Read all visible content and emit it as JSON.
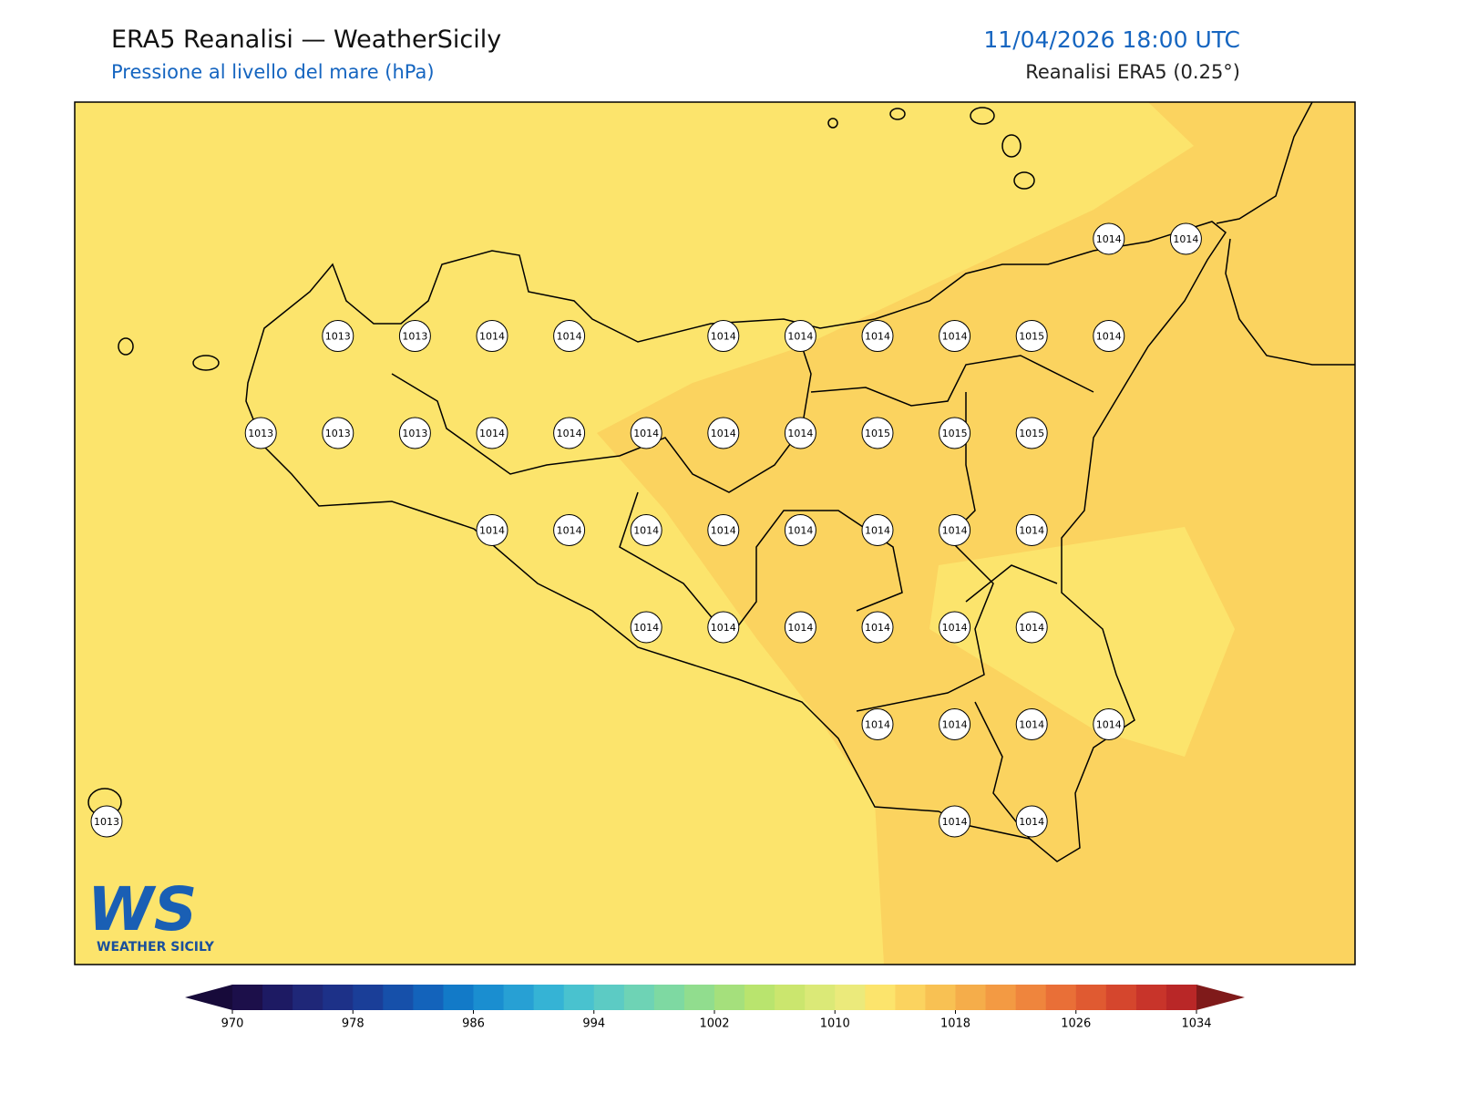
{
  "header": {
    "title": "ERA5 Reanalisi — WeatherSicily",
    "subtitle": "Pressione al livello del mare (hPa)",
    "datetime": "11/04/2026 18:00 UTC",
    "source": "Reanalisi ERA5 (0.25°)"
  },
  "logo": {
    "mark": "WS",
    "text": "WEATHER SICILY"
  },
  "station_grid": {
    "rows": [
      [
        null,
        null,
        null,
        null,
        null,
        null,
        null,
        null,
        null,
        null,
        null,
        null,
        null,
        1014,
        1014
      ],
      [
        null,
        null,
        null,
        1013,
        1013,
        1014,
        1014,
        null,
        1014,
        1014,
        1014,
        1014,
        1015,
        1014,
        null
      ],
      [
        null,
        null,
        1013,
        1013,
        1013,
        1014,
        1014,
        1014,
        1014,
        1014,
        1015,
        1015,
        1015,
        null,
        null
      ],
      [
        null,
        null,
        null,
        null,
        null,
        1014,
        1014,
        1014,
        1014,
        1014,
        1014,
        1014,
        1014,
        null,
        null
      ],
      [
        null,
        null,
        null,
        null,
        null,
        null,
        null,
        1014,
        1014,
        1014,
        1014,
        1014,
        1014,
        null,
        null
      ],
      [
        null,
        null,
        null,
        null,
        null,
        null,
        null,
        null,
        null,
        null,
        1014,
        1014,
        1014,
        1014,
        null
      ],
      [
        1013,
        null,
        null,
        null,
        null,
        null,
        null,
        null,
        null,
        null,
        null,
        1014,
        1014,
        null,
        null
      ]
    ]
  },
  "colorbar": {
    "lim": [
      970,
      1034
    ],
    "ticks": [
      970,
      978,
      986,
      994,
      1002,
      1010,
      1018,
      1026,
      1034
    ],
    "colors": [
      "#1c0f4a",
      "#1d1a63",
      "#1f2778",
      "#1d3188",
      "#1a3e98",
      "#1650aa",
      "#1363bb",
      "#127ac8",
      "#1a8ed0",
      "#27a0d4",
      "#35b3d5",
      "#49c2cf",
      "#5ccbc4",
      "#6ed3b5",
      "#7ed9a2",
      "#91dd8e",
      "#a5e07c",
      "#b9e46e",
      "#cbe66e",
      "#dbe977",
      "#ebea7b",
      "#fce46c",
      "#fbd35f",
      "#f8c153",
      "#f5ad4a",
      "#f39a43",
      "#ef853d",
      "#e96f37",
      "#e05a31",
      "#d5462d",
      "#c8342a",
      "#b92727"
    ],
    "under": "#170a3a",
    "over": "#7f1a1a"
  }
}
